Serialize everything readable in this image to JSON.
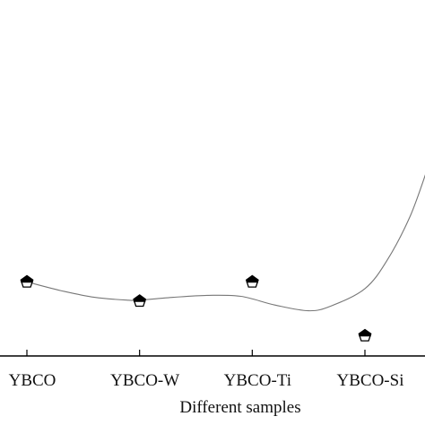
{
  "chart_data": {
    "type": "scatter",
    "title": "",
    "xlabel": "Different samples",
    "ylabel": "",
    "categories": [
      "YBCO",
      "YBCO-W",
      "YBCO-Ti",
      "YBCO-Si"
    ],
    "series": [
      {
        "values": [
          0.62,
          0.42,
          0.62,
          0.06
        ],
        "marker": "pentagon"
      }
    ],
    "fit_curve": {
      "style": "smooth",
      "color": "#777777",
      "points": [
        [
          0,
          0.62
        ],
        [
          0.3,
          0.53
        ],
        [
          0.6,
          0.46
        ],
        [
          0.9,
          0.43
        ],
        [
          1.0,
          0.43
        ],
        [
          1.3,
          0.46
        ],
        [
          1.6,
          0.48
        ],
        [
          1.9,
          0.47
        ],
        [
          2.2,
          0.38
        ],
        [
          2.5,
          0.32
        ],
        [
          2.7,
          0.37
        ],
        [
          3.0,
          0.55
        ],
        [
          3.2,
          0.85
        ],
        [
          3.4,
          1.3
        ],
        [
          3.55,
          1.78
        ]
      ]
    },
    "ylim": [
      -0.15,
      1.78
    ],
    "xlim": [
      0,
      3.55
    ],
    "grid": false,
    "legend": "none"
  }
}
